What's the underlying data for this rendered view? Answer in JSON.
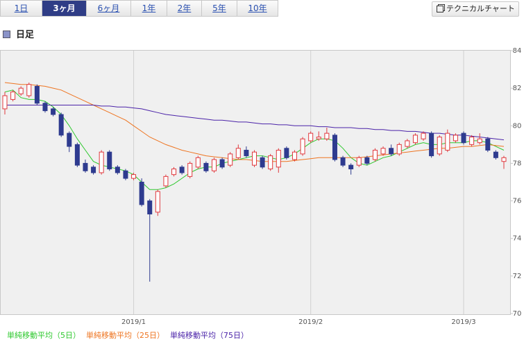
{
  "tabs": [
    "1日",
    "3ヶ月",
    "6ヶ月",
    "1年",
    "2年",
    "5年",
    "10年"
  ],
  "technical_button": "テクニカルチャート",
  "section_title": "日足",
  "chart_data": {
    "type": "candlestick",
    "categories": [
      null,
      null,
      null,
      null,
      null,
      null,
      null,
      null,
      null,
      null,
      null,
      null,
      null,
      null,
      null,
      null,
      "2019/1",
      null,
      null,
      null,
      null,
      null,
      null,
      null,
      null,
      null,
      null,
      null,
      null,
      null,
      null,
      null,
      null,
      null,
      null,
      null,
      null,
      null,
      "2019/2",
      null,
      null,
      null,
      null,
      null,
      null,
      null,
      null,
      null,
      null,
      null,
      null,
      null,
      null,
      null,
      null,
      null,
      null,
      "2019/3",
      null,
      null,
      null,
      null,
      null
    ],
    "ohlc": [
      [
        80.9,
        81.8,
        80.6,
        81.6
      ],
      [
        81.4,
        81.9,
        81.3,
        81.8
      ],
      [
        81.7,
        82.1,
        81.6,
        82.0
      ],
      [
        81.6,
        82.3,
        81.5,
        82.2
      ],
      [
        82.1,
        82.2,
        81.1,
        81.2
      ],
      [
        81.2,
        81.3,
        80.7,
        80.8
      ],
      [
        80.9,
        81.0,
        80.5,
        80.6
      ],
      [
        80.6,
        80.7,
        79.4,
        79.5
      ],
      [
        79.6,
        79.7,
        78.6,
        78.9
      ],
      [
        79.0,
        79.1,
        77.8,
        77.9
      ],
      [
        78.0,
        78.2,
        77.5,
        77.6
      ],
      [
        77.8,
        77.9,
        77.4,
        77.5
      ],
      [
        77.5,
        78.7,
        77.4,
        78.6
      ],
      [
        78.6,
        78.7,
        77.6,
        77.7
      ],
      [
        77.8,
        77.9,
        77.4,
        77.5
      ],
      [
        77.6,
        77.7,
        77.1,
        77.2
      ],
      [
        77.2,
        77.5,
        77.1,
        77.4
      ],
      [
        77.0,
        77.2,
        75.7,
        75.8
      ],
      [
        76.0,
        76.1,
        71.7,
        75.3
      ],
      [
        75.4,
        76.6,
        75.2,
        76.5
      ],
      [
        76.8,
        77.4,
        76.7,
        77.3
      ],
      [
        77.4,
        77.8,
        77.3,
        77.7
      ],
      [
        77.8,
        77.9,
        77.4,
        77.5
      ],
      [
        77.3,
        78.1,
        77.2,
        78.0
      ],
      [
        77.8,
        78.4,
        77.7,
        78.3
      ],
      [
        78.0,
        78.1,
        77.5,
        77.6
      ],
      [
        77.6,
        78.3,
        77.5,
        78.2
      ],
      [
        78.2,
        78.3,
        77.7,
        77.8
      ],
      [
        77.9,
        78.6,
        77.8,
        78.5
      ],
      [
        78.3,
        79.0,
        78.2,
        78.8
      ],
      [
        78.7,
        78.9,
        78.3,
        78.4
      ],
      [
        77.9,
        78.7,
        77.8,
        78.6
      ],
      [
        78.3,
        78.4,
        77.7,
        77.8
      ],
      [
        77.7,
        78.5,
        77.6,
        78.4
      ],
      [
        77.8,
        78.8,
        77.5,
        78.7
      ],
      [
        78.8,
        78.9,
        78.2,
        78.3
      ],
      [
        78.2,
        78.7,
        78.1,
        78.6
      ],
      [
        78.5,
        79.4,
        78.4,
        79.3
      ],
      [
        79.2,
        79.7,
        79.1,
        79.6
      ],
      [
        79.3,
        79.7,
        79.2,
        79.4
      ],
      [
        79.3,
        79.9,
        79.2,
        79.6
      ],
      [
        79.5,
        79.6,
        78.1,
        78.2
      ],
      [
        78.3,
        78.4,
        77.8,
        77.9
      ],
      [
        77.9,
        78.0,
        77.4,
        77.7
      ],
      [
        77.9,
        78.4,
        77.8,
        78.3
      ],
      [
        78.3,
        78.4,
        77.9,
        78.0
      ],
      [
        78.2,
        78.8,
        78.1,
        78.7
      ],
      [
        78.5,
        78.9,
        78.4,
        78.8
      ],
      [
        78.8,
        79.0,
        78.4,
        78.5
      ],
      [
        78.5,
        79.1,
        78.4,
        79.0
      ],
      [
        78.9,
        79.3,
        78.8,
        79.2
      ],
      [
        79.1,
        79.6,
        79.0,
        79.5
      ],
      [
        79.3,
        79.7,
        79.2,
        79.6
      ],
      [
        79.6,
        79.7,
        78.3,
        78.4
      ],
      [
        78.5,
        79.5,
        78.4,
        79.4
      ],
      [
        78.7,
        79.8,
        78.6,
        79.6
      ],
      [
        79.2,
        79.6,
        79.1,
        79.5
      ],
      [
        79.6,
        79.7,
        79.0,
        79.1
      ],
      [
        79.0,
        79.5,
        78.9,
        79.4
      ],
      [
        79.1,
        79.6,
        79.0,
        79.3
      ],
      [
        79.3,
        79.4,
        78.6,
        78.7
      ],
      [
        78.6,
        78.7,
        78.2,
        78.3
      ],
      [
        78.1,
        78.4,
        77.7,
        78.3
      ]
    ],
    "up_color": "#e0383d",
    "down_color": "#2e3b8f",
    "series": [
      {
        "name": "単純移動平均（5日）",
        "color": "#2ec82e",
        "values": [
          81.8,
          81.9,
          81.5,
          81.4,
          81.4,
          81.3,
          81.0,
          80.6,
          80.0,
          79.3,
          78.7,
          78.1,
          77.9,
          77.8,
          77.7,
          77.6,
          77.4,
          77.0,
          76.6,
          76.6,
          76.7,
          76.9,
          77.2,
          77.5,
          77.7,
          77.8,
          77.8,
          78.0,
          78.1,
          78.2,
          78.3,
          78.4,
          78.4,
          78.3,
          78.2,
          78.3,
          78.5,
          78.8,
          79.1,
          79.3,
          79.3,
          79.2,
          78.8,
          78.3,
          78.0,
          77.9,
          78.1,
          78.3,
          78.4,
          78.6,
          78.8,
          79.0,
          79.1,
          79.0,
          79.0,
          79.1,
          79.1,
          79.1,
          79.2,
          79.2,
          79.1,
          78.9,
          78.7
        ]
      },
      {
        "name": "単純移動平均（25日）",
        "color": "#ee7420",
        "values": [
          82.3,
          82.25,
          82.2,
          82.2,
          82.15,
          82.1,
          82.0,
          81.9,
          81.7,
          81.5,
          81.3,
          81.1,
          80.9,
          80.7,
          80.5,
          80.3,
          80.0,
          79.7,
          79.4,
          79.2,
          79.0,
          78.85,
          78.7,
          78.6,
          78.5,
          78.4,
          78.35,
          78.3,
          78.25,
          78.2,
          78.2,
          78.15,
          78.1,
          78.1,
          78.1,
          78.1,
          78.15,
          78.2,
          78.25,
          78.3,
          78.3,
          78.3,
          78.3,
          78.3,
          78.3,
          78.35,
          78.4,
          78.45,
          78.5,
          78.55,
          78.6,
          78.65,
          78.7,
          78.75,
          78.8,
          78.8,
          78.85,
          78.9,
          78.9,
          78.95,
          79.0,
          78.95,
          78.9
        ]
      },
      {
        "name": "単純移動平均（75日）",
        "color": "#4a22a8",
        "values": [
          81.1,
          81.1,
          81.1,
          81.1,
          81.1,
          81.1,
          81.1,
          81.1,
          81.1,
          81.1,
          81.1,
          81.1,
          81.05,
          81.05,
          81.0,
          81.0,
          80.95,
          80.9,
          80.8,
          80.7,
          80.6,
          80.55,
          80.5,
          80.45,
          80.4,
          80.35,
          80.3,
          80.3,
          80.25,
          80.2,
          80.2,
          80.15,
          80.1,
          80.1,
          80.05,
          80.05,
          80.0,
          80.0,
          80.0,
          79.95,
          79.95,
          79.9,
          79.9,
          79.9,
          79.85,
          79.85,
          79.8,
          79.8,
          79.75,
          79.75,
          79.7,
          79.7,
          79.65,
          79.6,
          79.6,
          79.55,
          79.5,
          79.5,
          79.45,
          79.4,
          79.35,
          79.3,
          79.25
        ]
      }
    ],
    "ylim": [
      70,
      84
    ],
    "yticks": [
      70,
      72,
      74,
      76,
      78,
      80,
      82,
      84
    ],
    "grid": "x"
  }
}
